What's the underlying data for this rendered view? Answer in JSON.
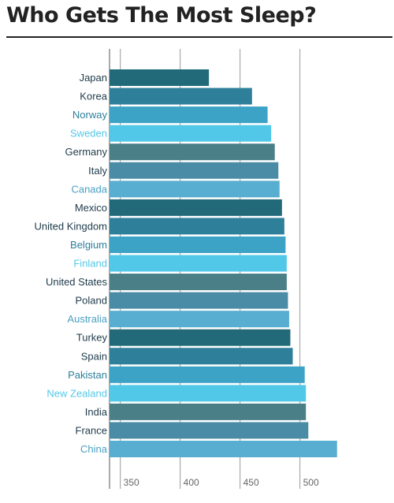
{
  "page_title": "Who Gets The Most Sleep?",
  "chart_data": {
    "type": "bar",
    "orientation": "horizontal",
    "title": "Who Gets The Most Sleep?",
    "xlabel": "",
    "ylabel": "",
    "xlim": [
      341,
      545
    ],
    "x_ticks": [
      350,
      400,
      450,
      500
    ],
    "grid": true,
    "legend": "none",
    "categories": [
      "Japan",
      "Korea",
      "Norway",
      "Sweden",
      "Germany",
      "Italy",
      "Canada",
      "Mexico",
      "United Kingdom",
      "Belgium",
      "Finland",
      "United States",
      "Poland",
      "Australia",
      "Turkey",
      "Spain",
      "Pakistan",
      "New Zealand",
      "India",
      "France",
      "China"
    ],
    "values": [
      424,
      460,
      473,
      476,
      479,
      482,
      483,
      485,
      487,
      488,
      489,
      489,
      490,
      491,
      492,
      494,
      504,
      505,
      505,
      507,
      531
    ],
    "palette": [
      "#226a7a",
      "#2d7f9a",
      "#3ca3c6",
      "#52c8e8",
      "#4a7f88",
      "#4a8ca6",
      "#58aed0"
    ],
    "label_colors": [
      "#1e3a4a",
      "#1e3a4a",
      "#2d7f9a",
      "#52c8e8",
      "#1e3a4a",
      "#1e3a4a",
      "#4aa0c2"
    ]
  }
}
